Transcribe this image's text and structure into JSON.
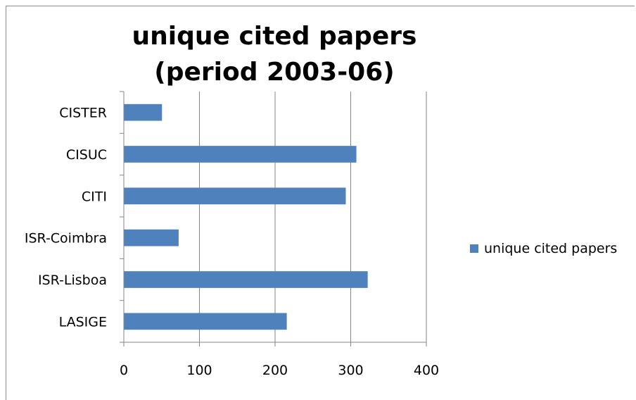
{
  "chart_data": {
    "type": "bar",
    "orientation": "horizontal",
    "title": "unique cited papers\n(period 2003-06)",
    "title_lines": [
      "unique cited papers",
      "(period 2003-06)"
    ],
    "categories": [
      "CISTER",
      "CISUC",
      "CITI",
      "ISR-Coimbra",
      "ISR-Lisboa",
      "LASIGE"
    ],
    "series": [
      {
        "name": "unique cited papers",
        "values": [
          50,
          307,
          293,
          72,
          322,
          215
        ],
        "color": "#4f81bd"
      }
    ],
    "xlim": [
      0,
      400
    ],
    "xticks": [
      0,
      100,
      200,
      300,
      400
    ],
    "xtick_labels": [
      "0",
      "100",
      "200",
      "300",
      "400"
    ],
    "grid": "vertical major gridlines",
    "legend_position": "right"
  }
}
